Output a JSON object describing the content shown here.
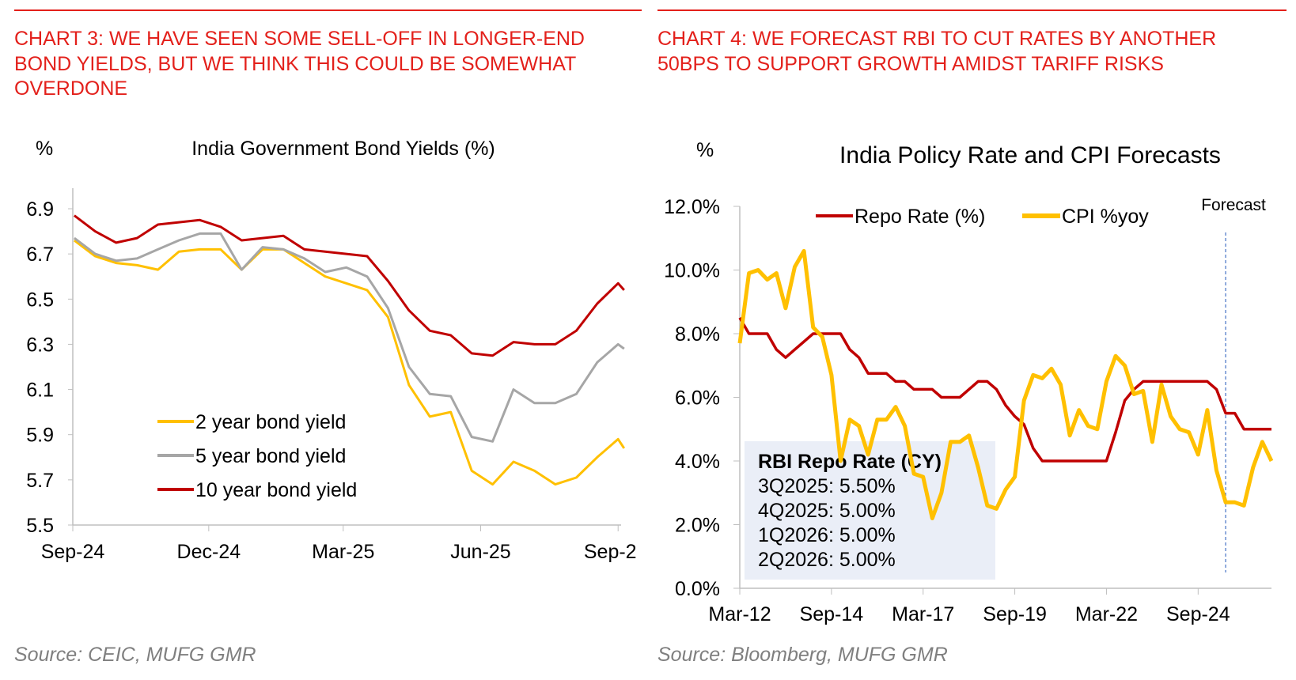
{
  "left": {
    "title": "CHART 3: WE HAVE SEEN SOME SELL-OFF IN LONGER-END BOND YIELDS, BUT WE THINK THIS COULD BE SOMEWHAT OVERDONE",
    "source": "Source: CEIC, MUFG GMR"
  },
  "right": {
    "title": "CHART 4: WE FORECAST RBI TO CUT RATES BY ANOTHER 50BPS TO SUPPORT GROWTH AMIDST TARIFF RISKS",
    "source": "Source: Bloomberg, MUFG GMR",
    "box": {
      "heading": "RBI Repo Rate (CY)",
      "lines": [
        "3Q2025: 5.50%",
        "4Q2025: 5.00%",
        "1Q2026: 5.00%",
        "2Q2026: 5.00%"
      ],
      "color": "#eaeef7"
    }
  },
  "chart_data": [
    {
      "type": "line",
      "title": "India Government Bond Yields (%)",
      "ylabel": "%",
      "ylim": [
        5.5,
        6.9
      ],
      "yticks": [
        "6.9",
        "6.7",
        "6.5",
        "6.3",
        "6.1",
        "5.9",
        "5.7",
        "5.5"
      ],
      "xticks": [
        "Sep-24",
        "Dec-24",
        "Mar-25",
        "Jun-25",
        "Sep-2"
      ],
      "xtick_dates": [
        "2024-09-01",
        "2024-12-01",
        "2025-03-01",
        "2025-06-01",
        "2025-09-01"
      ],
      "grid": false,
      "legend": "center-left",
      "x": [
        "2024-09-02",
        "2024-09-16",
        "2024-09-30",
        "2024-10-14",
        "2024-10-28",
        "2024-11-11",
        "2024-11-25",
        "2024-12-09",
        "2024-12-23",
        "2025-01-06",
        "2025-01-20",
        "2025-02-03",
        "2025-02-17",
        "2025-03-03",
        "2025-03-17",
        "2025-03-31",
        "2025-04-14",
        "2025-04-28",
        "2025-05-12",
        "2025-05-26",
        "2025-06-09",
        "2025-06-23",
        "2025-07-07",
        "2025-07-21",
        "2025-08-04",
        "2025-08-18",
        "2025-09-01",
        "2025-09-05"
      ],
      "series": [
        {
          "name": "2 year  bond yield",
          "color": "#ffc000",
          "values": [
            6.76,
            6.69,
            6.66,
            6.65,
            6.63,
            6.71,
            6.72,
            6.72,
            6.63,
            6.72,
            6.72,
            6.66,
            6.6,
            6.57,
            6.54,
            6.42,
            6.12,
            5.98,
            6.0,
            5.74,
            5.68,
            5.78,
            5.74,
            5.68,
            5.71,
            5.8,
            5.88,
            5.84
          ]
        },
        {
          "name": "5 year  bond yield",
          "color": "#a6a6a6",
          "values": [
            6.77,
            6.7,
            6.67,
            6.68,
            6.72,
            6.76,
            6.79,
            6.79,
            6.63,
            6.73,
            6.72,
            6.68,
            6.62,
            6.64,
            6.6,
            6.46,
            6.2,
            6.08,
            6.07,
            5.89,
            5.87,
            6.1,
            6.04,
            6.04,
            6.08,
            6.22,
            6.3,
            6.28
          ]
        },
        {
          "name": "10 year  bond yield",
          "color": "#c00000",
          "values": [
            6.87,
            6.8,
            6.75,
            6.77,
            6.83,
            6.84,
            6.85,
            6.82,
            6.76,
            6.77,
            6.78,
            6.72,
            6.71,
            6.7,
            6.69,
            6.58,
            6.45,
            6.36,
            6.34,
            6.26,
            6.25,
            6.31,
            6.3,
            6.3,
            6.36,
            6.48,
            6.57,
            6.54
          ]
        }
      ]
    },
    {
      "type": "line",
      "title": "India Policy Rate and CPI Forecasts",
      "ylabel": "%",
      "ylim": [
        0,
        12
      ],
      "yticks": [
        "12.0%",
        "10.0%",
        "8.0%",
        "6.0%",
        "4.0%",
        "2.0%",
        "0.0%"
      ],
      "xticks": [
        "Mar-12",
        "Sep-14",
        "Mar-17",
        "Sep-19",
        "Mar-22",
        "Sep-24"
      ],
      "grid": false,
      "legend": "top",
      "annotation": {
        "label": "Forecast",
        "x": "Jun-25",
        "color": "#4472c4"
      },
      "x": [
        "Mar-12",
        "Jun-12",
        "Sep-12",
        "Dec-12",
        "Mar-13",
        "Jun-13",
        "Sep-13",
        "Dec-13",
        "Mar-14",
        "Jun-14",
        "Sep-14",
        "Dec-14",
        "Mar-15",
        "Jun-15",
        "Sep-15",
        "Dec-15",
        "Mar-16",
        "Jun-16",
        "Sep-16",
        "Dec-16",
        "Mar-17",
        "Jun-17",
        "Sep-17",
        "Dec-17",
        "Mar-18",
        "Jun-18",
        "Sep-18",
        "Dec-18",
        "Mar-19",
        "Jun-19",
        "Sep-19",
        "Dec-19",
        "Mar-20",
        "Jun-20",
        "Sep-20",
        "Dec-20",
        "Mar-21",
        "Jun-21",
        "Sep-21",
        "Dec-21",
        "Mar-22",
        "Jun-22",
        "Sep-22",
        "Dec-22",
        "Mar-23",
        "Jun-23",
        "Sep-23",
        "Dec-23",
        "Mar-24",
        "Jun-24",
        "Sep-24",
        "Dec-24",
        "Mar-25",
        "Jun-25",
        "Sep-25",
        "Dec-25",
        "Mar-26",
        "Jun-26",
        "Sep-26"
      ],
      "series": [
        {
          "name": "Repo Rate (%)",
          "color": "#c00000",
          "values": [
            8.5,
            8.0,
            8.0,
            8.0,
            7.5,
            7.25,
            7.5,
            7.75,
            8.0,
            8.0,
            8.0,
            8.0,
            7.5,
            7.25,
            6.75,
            6.75,
            6.75,
            6.5,
            6.5,
            6.25,
            6.25,
            6.25,
            6.0,
            6.0,
            6.0,
            6.25,
            6.5,
            6.5,
            6.25,
            5.75,
            5.4,
            5.15,
            4.4,
            4.0,
            4.0,
            4.0,
            4.0,
            4.0,
            4.0,
            4.0,
            4.0,
            4.9,
            5.9,
            6.25,
            6.5,
            6.5,
            6.5,
            6.5,
            6.5,
            6.5,
            6.5,
            6.5,
            6.25,
            5.5,
            5.5,
            5.0,
            5.0,
            5.0,
            5.0
          ]
        },
        {
          "name": "CPI %yoy",
          "color": "#ffc000",
          "values": [
            7.7,
            9.9,
            10.0,
            9.7,
            9.9,
            8.8,
            10.1,
            10.6,
            8.2,
            7.9,
            6.7,
            4.0,
            5.3,
            5.1,
            4.2,
            5.3,
            5.3,
            5.7,
            5.1,
            3.6,
            3.5,
            2.2,
            3.0,
            4.6,
            4.6,
            4.8,
            3.8,
            2.6,
            2.5,
            3.1,
            3.5,
            5.9,
            6.7,
            6.6,
            6.9,
            6.4,
            4.8,
            5.6,
            5.1,
            5.0,
            6.5,
            7.3,
            7.0,
            6.1,
            6.2,
            4.6,
            6.4,
            5.4,
            5.0,
            4.9,
            4.2,
            5.6,
            3.7,
            2.7,
            2.7,
            2.6,
            3.8,
            4.6,
            4.0
          ]
        }
      ]
    }
  ]
}
